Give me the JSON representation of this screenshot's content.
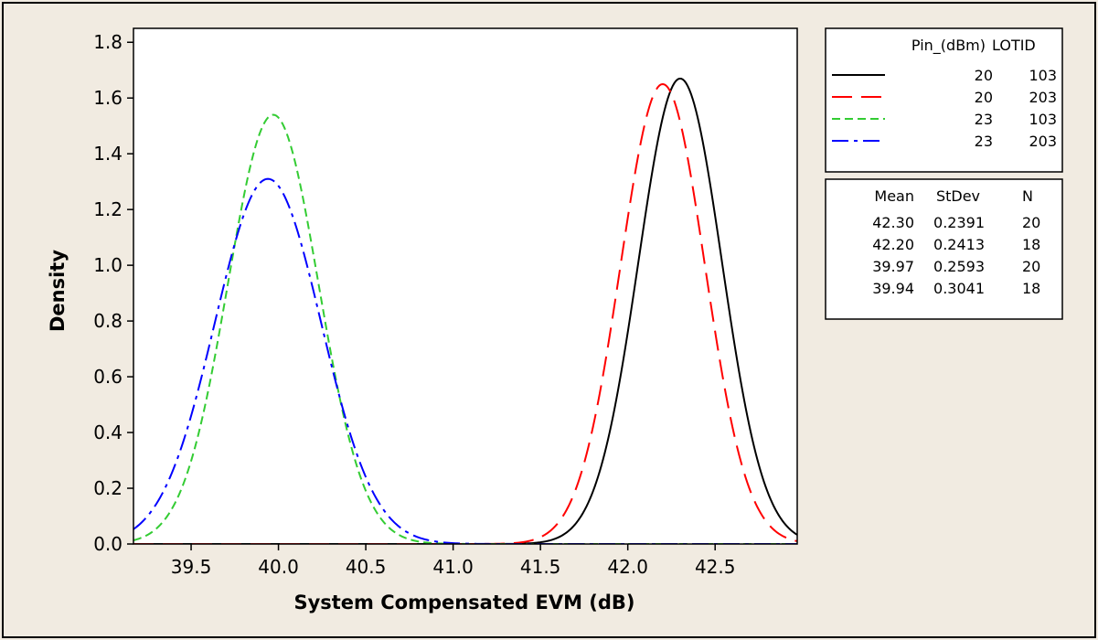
{
  "chart_data": {
    "type": "line",
    "title": "",
    "xlabel": "System Compensated EVM (dB)",
    "ylabel": "Density",
    "xlim": [
      39.17,
      42.97
    ],
    "ylim": [
      0.0,
      1.85
    ],
    "xticks": [
      "39.5",
      "40.0",
      "40.5",
      "41.0",
      "41.5",
      "42.0",
      "42.5"
    ],
    "yticks": [
      "0.0",
      "0.2",
      "0.4",
      "0.6",
      "0.8",
      "1.0",
      "1.2",
      "1.4",
      "1.6",
      "1.8"
    ],
    "legend": {
      "headers": [
        "Pin_(dBm)",
        "LOTID"
      ],
      "stat_headers": [
        "Mean",
        "StDev",
        "N"
      ]
    },
    "series": [
      {
        "pin": "20",
        "lotid": "103",
        "mean": "42.30",
        "stdev": "0.2391",
        "n": "20",
        "color": "#000000",
        "dash": "solid",
        "mu": 42.3,
        "sigma": 0.2391,
        "peak": 1.67
      },
      {
        "pin": "20",
        "lotid": "203",
        "mean": "42.20",
        "stdev": "0.2413",
        "n": "18",
        "color": "#ff0000",
        "dash": "longdash",
        "mu": 42.2,
        "sigma": 0.2413,
        "peak": 1.65
      },
      {
        "pin": "23",
        "lotid": "103",
        "mean": "39.97",
        "stdev": "0.2593",
        "n": "20",
        "color": "#33cc33",
        "dash": "shortdash",
        "mu": 39.97,
        "sigma": 0.2593,
        "peak": 1.54
      },
      {
        "pin": "23",
        "lotid": "203",
        "mean": "39.94",
        "stdev": "0.3041",
        "n": "18",
        "color": "#0000ff",
        "dash": "dashdot",
        "mu": 39.94,
        "sigma": 0.3041,
        "peak": 1.31
      }
    ]
  }
}
